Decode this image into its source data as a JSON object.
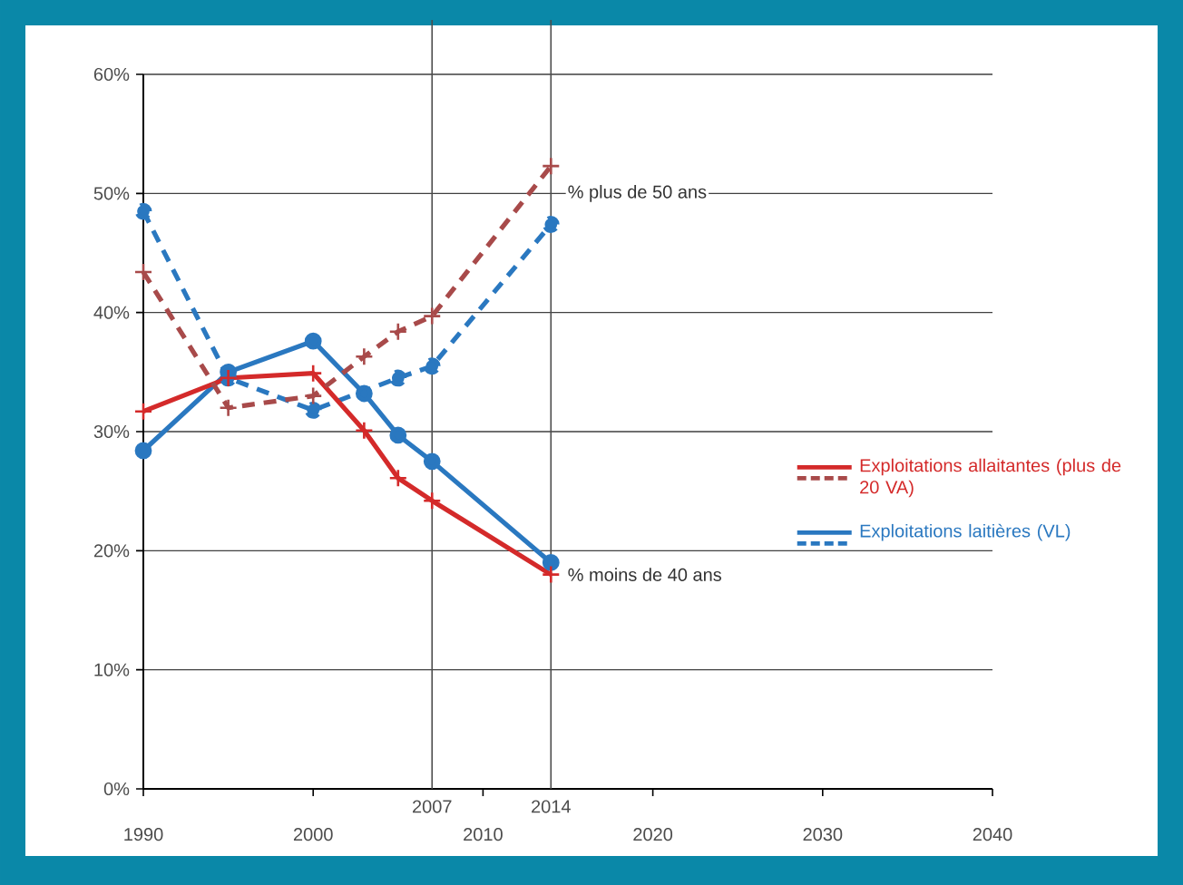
{
  "chart_data": {
    "type": "line",
    "x": [
      1990,
      1995,
      2000,
      2003,
      2005,
      2007,
      2014
    ],
    "series": [
      {
        "name": "Exploitations allaitantes (plus de 20 VA)",
        "color": "#d42a2a",
        "line_style": "solid",
        "marker": "cross",
        "values": [
          31.7,
          34.5,
          34.9,
          30.1,
          26.1,
          24.2,
          18.0
        ]
      },
      {
        "color": "#a84a4a",
        "line_style": "dashed",
        "marker": "cross",
        "values": [
          43.4,
          32.0,
          33.0,
          36.3,
          38.4,
          39.7,
          52.3
        ]
      },
      {
        "name": "Exploitations laitières (VL)",
        "color": "#2a78c0",
        "line_style": "solid",
        "marker": "circle",
        "values": [
          28.4,
          35.0,
          37.6,
          33.2,
          29.7,
          27.5,
          19.0
        ]
      },
      {
        "color": "#2a78c0",
        "line_style": "dashed",
        "marker": "circle",
        "values": [
          48.5,
          34.5,
          31.8,
          null,
          34.5,
          35.5,
          47.4
        ]
      }
    ],
    "xlim": [
      1990,
      2040
    ],
    "xticks": [
      1990,
      2000,
      2010,
      2020,
      2030,
      2040
    ],
    "ylim": [
      0,
      60
    ],
    "yticks": [
      {
        "value": 0,
        "label": "0%"
      },
      {
        "value": 10,
        "label": "10%"
      },
      {
        "value": 20,
        "label": "20%"
      },
      {
        "value": 30,
        "label": "30%"
      },
      {
        "value": 40,
        "label": "40%"
      },
      {
        "value": 50,
        "label": "50%"
      },
      {
        "value": 60,
        "label": "60%"
      }
    ],
    "ref_lines": [
      {
        "axis": "x",
        "value": 2007,
        "label": "2007"
      },
      {
        "axis": "x",
        "value": 2014,
        "label": "2014"
      }
    ],
    "annotations": [
      {
        "text": "% plus de 50 ans",
        "x": 2014,
        "y": 50
      },
      {
        "text": "% moins de 40 ans",
        "x": 2014,
        "y": 18
      }
    ],
    "grid": "y",
    "legend": "right"
  }
}
